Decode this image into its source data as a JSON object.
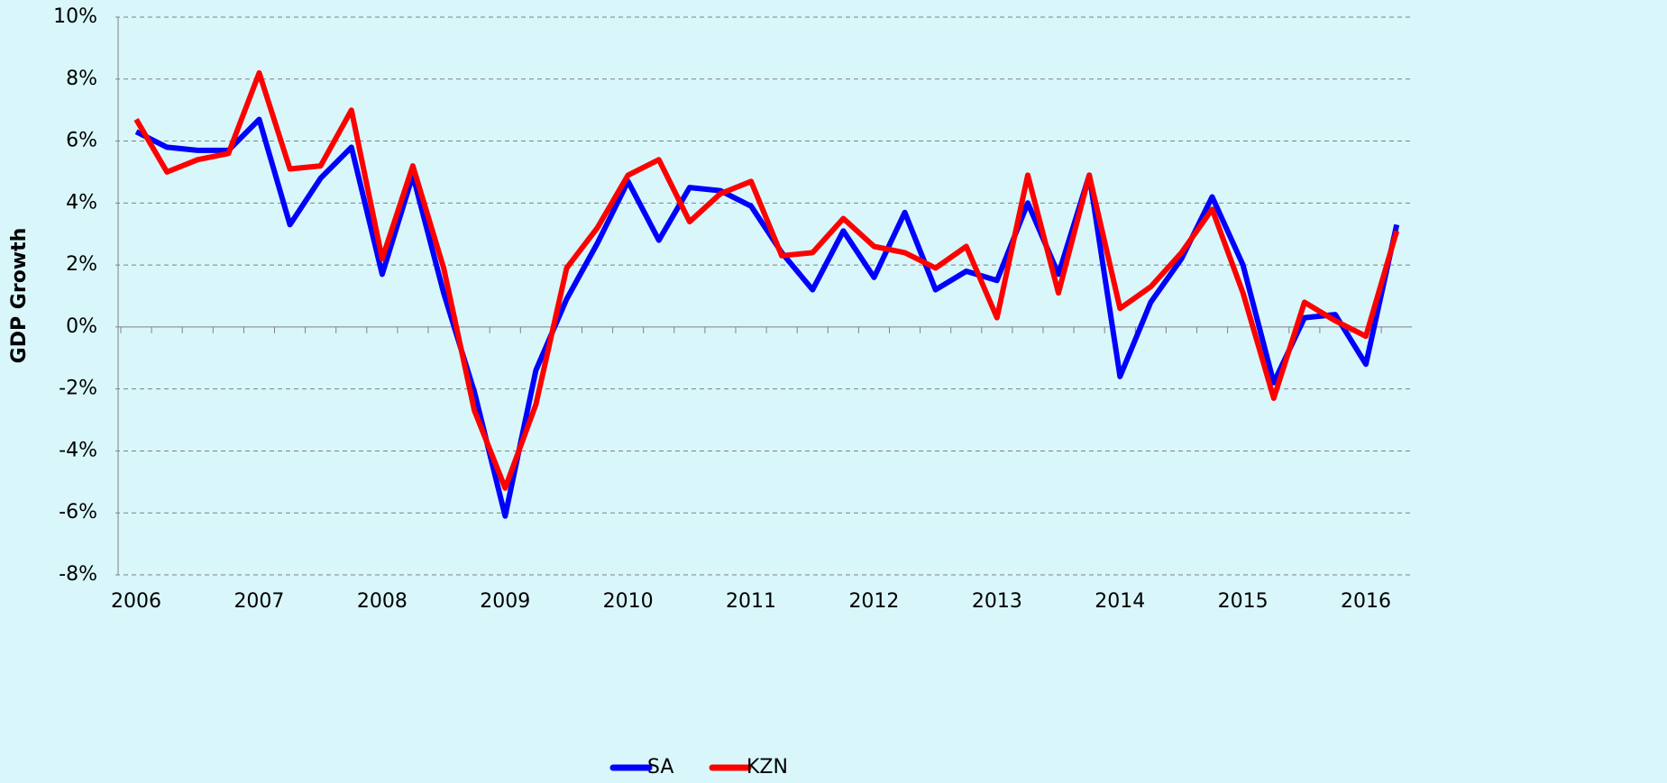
{
  "chart_data": {
    "type": "line",
    "y_label": "GDP Growth",
    "categories": [
      "2006",
      null,
      null,
      null,
      "2007",
      null,
      null,
      null,
      "2008",
      null,
      null,
      null,
      "2009",
      null,
      null,
      null,
      "2010",
      null,
      null,
      null,
      "2011",
      null,
      null,
      null,
      "2012",
      null,
      null,
      null,
      "2013",
      null,
      null,
      null,
      "2014",
      null,
      null,
      null,
      "2015",
      null,
      null,
      null,
      "2016",
      null
    ],
    "series": [
      {
        "name": "SA",
        "color": "#0000ff",
        "values": [
          6.3,
          5.8,
          5.7,
          5.7,
          6.7,
          3.3,
          4.8,
          5.8,
          1.7,
          4.9,
          1.1,
          -2.1,
          -6.1,
          -1.4,
          0.9,
          2.7,
          4.7,
          2.8,
          4.5,
          4.4,
          3.9,
          2.4,
          1.2,
          3.1,
          1.6,
          3.7,
          1.2,
          1.8,
          1.5,
          4.0,
          1.7,
          4.9,
          -1.6,
          0.8,
          2.2,
          4.2,
          2.0,
          -1.8,
          0.3,
          0.4,
          -1.2,
          3.3
        ]
      },
      {
        "name": "KZN",
        "color": "#ff0000",
        "values": [
          6.7,
          5.0,
          5.4,
          5.6,
          8.2,
          5.1,
          5.2,
          7.0,
          2.2,
          5.2,
          1.9,
          -2.7,
          -5.2,
          -2.5,
          1.9,
          3.2,
          4.9,
          5.4,
          3.4,
          4.3,
          4.7,
          2.3,
          2.4,
          3.5,
          2.6,
          2.4,
          1.9,
          2.6,
          0.3,
          4.9,
          1.1,
          4.9,
          0.6,
          1.3,
          2.4,
          3.8,
          1.1,
          -2.3,
          0.8,
          0.2,
          -0.3,
          3.1
        ]
      }
    ],
    "ylim": [
      -8,
      10
    ],
    "yticks": [
      {
        "value": -8,
        "label": "-8%"
      },
      {
        "value": -6,
        "label": "-6%"
      },
      {
        "value": -4,
        "label": "-4%"
      },
      {
        "value": -2,
        "label": "-2%"
      },
      {
        "value": 0,
        "label": "0%"
      },
      {
        "value": 2,
        "label": "2%"
      },
      {
        "value": 4,
        "label": "4%"
      },
      {
        "value": 6,
        "label": "6%"
      },
      {
        "value": 8,
        "label": "8%"
      },
      {
        "value": 10,
        "label": "10%"
      }
    ],
    "grid": true,
    "legend": "bottom"
  }
}
